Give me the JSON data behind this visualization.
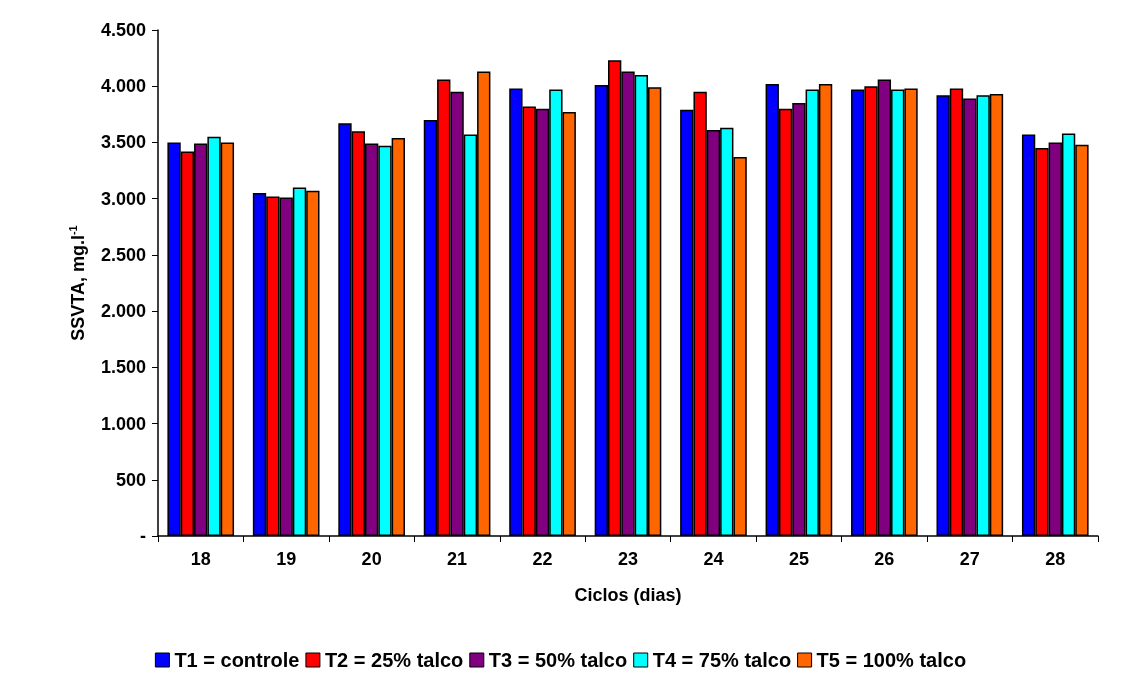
{
  "chart_data": {
    "type": "bar",
    "xlabel": "Ciclos (dias)",
    "ylabel": "SSVTA, mg.l$^{-1}$",
    "categories": [
      "18",
      "19",
      "20",
      "21",
      "22",
      "23",
      "24",
      "25",
      "26",
      "27",
      "28"
    ],
    "series": [
      {
        "name": "T1 = controle",
        "color": "#0000ff",
        "values": [
          3500,
          3050,
          3670,
          3700,
          3980,
          4010,
          3790,
          4020,
          3970,
          3920,
          3570
        ]
      },
      {
        "name": "T2 = 25% talco",
        "color": "#ff0000",
        "values": [
          3420,
          3020,
          3600,
          4060,
          3820,
          4230,
          3950,
          3800,
          4000,
          3980,
          3450
        ]
      },
      {
        "name": "T3 = 50% talco",
        "color": "#800080",
        "values": [
          3490,
          3010,
          3490,
          3950,
          3800,
          4130,
          3610,
          3850,
          4060,
          3890,
          3500
        ]
      },
      {
        "name": "T4 = 75% talco",
        "color": "#00ffff",
        "values": [
          3550,
          3100,
          3470,
          3570,
          3970,
          4100,
          3630,
          3970,
          3970,
          3920,
          3580
        ]
      },
      {
        "name": "T5 = 100% talco",
        "color": "#ff6600",
        "values": [
          3500,
          3070,
          3540,
          4130,
          3770,
          3990,
          3370,
          4020,
          3980,
          3930,
          3480
        ]
      }
    ],
    "ylim": [
      0,
      4500
    ],
    "yticks": [
      {
        "value": 0,
        "label": "-"
      },
      {
        "value": 500,
        "label": "500"
      },
      {
        "value": 1000,
        "label": "1.000"
      },
      {
        "value": 1500,
        "label": "1.500"
      },
      {
        "value": 2000,
        "label": "2.000"
      },
      {
        "value": 2500,
        "label": "2.500"
      },
      {
        "value": 3000,
        "label": "3.000"
      },
      {
        "value": 3500,
        "label": "3.500"
      },
      {
        "value": 4000,
        "label": "4.000"
      },
      {
        "value": 4500,
        "label": "4.500"
      }
    ],
    "grid": false,
    "legend": "bottom"
  }
}
